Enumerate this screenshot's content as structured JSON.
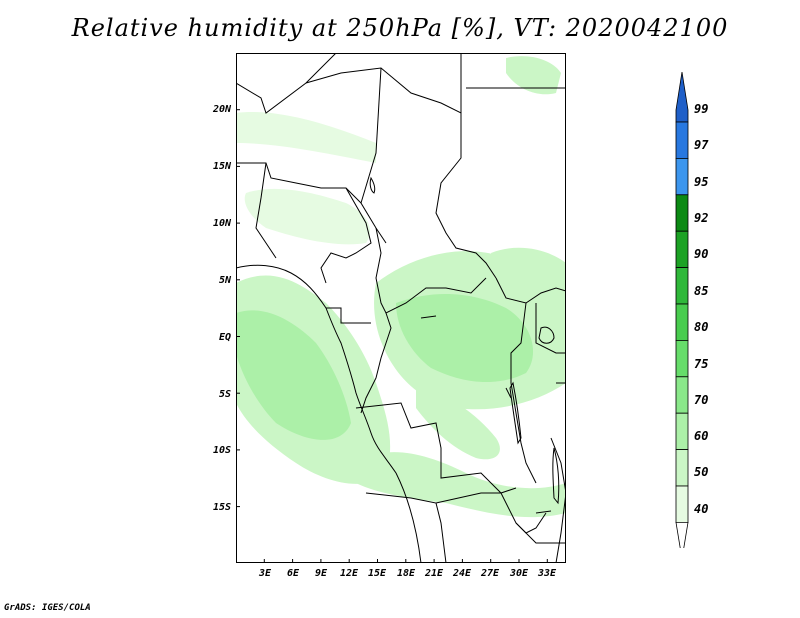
{
  "title": "Relative humidity at 250hPa [%], VT: 2020042100",
  "credit": "GrADS: IGES/COLA",
  "map": {
    "lat_labels": [
      "20N",
      "15N",
      "10N",
      "5N",
      "EQ",
      "5S",
      "10S",
      "15S"
    ],
    "lon_labels": [
      "3E",
      "6E",
      "9E",
      "12E",
      "15E",
      "18E",
      "21E",
      "24E",
      "27E",
      "30E",
      "33E"
    ],
    "lon_range": [
      0,
      35
    ],
    "lat_range": [
      -20,
      25
    ]
  },
  "colorbar": {
    "levels": [
      "99",
      "97",
      "95",
      "92",
      "90",
      "85",
      "80",
      "75",
      "70",
      "60",
      "50",
      "40"
    ],
    "units": "%",
    "bands": [
      {
        "label": "above 99",
        "color": "#1f5fc8"
      },
      {
        "label": "97-99",
        "color": "#2878e0"
      },
      {
        "label": "95-97",
        "color": "#3c96ee"
      },
      {
        "label": "92-95",
        "color": "#0c8a14"
      },
      {
        "label": "90-92",
        "color": "#1ca224"
      },
      {
        "label": "85-90",
        "color": "#2fb83a"
      },
      {
        "label": "80-85",
        "color": "#48cc4e"
      },
      {
        "label": "75-80",
        "color": "#66dd6a"
      },
      {
        "label": "70-75",
        "color": "#8ae88a"
      },
      {
        "label": "60-70",
        "color": "#acf0a8"
      },
      {
        "label": "50-60",
        "color": "#cbf6c6"
      },
      {
        "label": "40-50",
        "color": "#e6fbe2"
      },
      {
        "label": "below 40",
        "color": "#ffffff"
      }
    ]
  }
}
